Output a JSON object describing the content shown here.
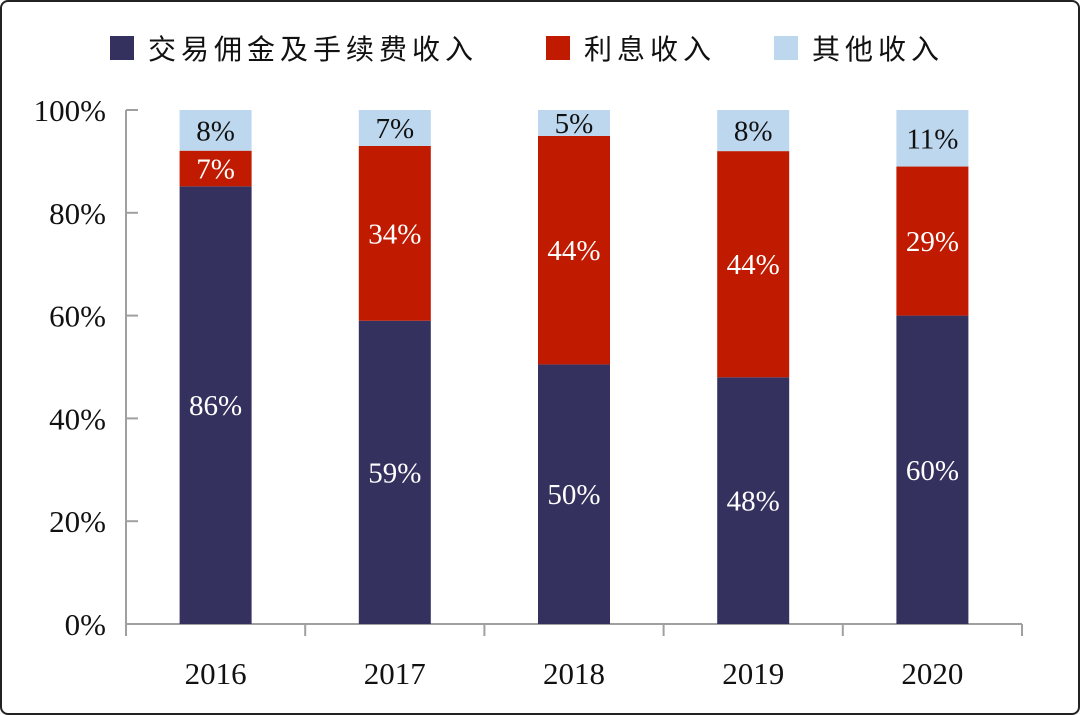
{
  "chart_data": {
    "type": "bar",
    "stacked": true,
    "categories": [
      "2016",
      "2017",
      "2018",
      "2019",
      "2020"
    ],
    "series": [
      {
        "name": "交易佣金及手续费收入",
        "color": "#35315f",
        "label_color": "#ffffff",
        "values": [
          86,
          59,
          50,
          48,
          60
        ],
        "labels": [
          "86%",
          "59%",
          "50%",
          "48%",
          "60%"
        ]
      },
      {
        "name": "利息收入",
        "color": "#c01a00",
        "label_color": "#ffffff",
        "values": [
          7,
          34,
          44,
          44,
          29
        ],
        "labels": [
          "7%",
          "34%",
          "44%",
          "44%",
          "29%"
        ]
      },
      {
        "name": "其他收入",
        "color": "#bdd7ee",
        "label_color": "#111111",
        "values": [
          8,
          7,
          5,
          8,
          11
        ],
        "labels": [
          "8%",
          "7%",
          "5%",
          "8%",
          "11%"
        ]
      }
    ],
    "yticks": [
      "0%",
      "20%",
      "40%",
      "60%",
      "80%",
      "100%"
    ],
    "ylim": [
      0,
      100
    ],
    "grid": false,
    "legend": "top"
  }
}
